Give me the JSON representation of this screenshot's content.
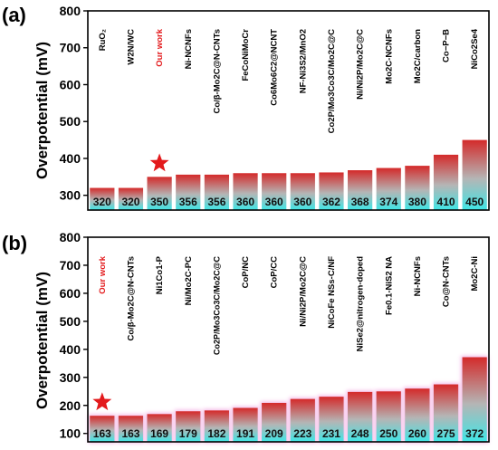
{
  "chart_data": [
    {
      "panel": "(a)",
      "type": "bar",
      "ylabel": "Overpotential (mV)",
      "ylim": [
        260,
        800
      ],
      "yticks": [
        300,
        400,
        500,
        600,
        700,
        800
      ],
      "highlight_index": 2,
      "star_on_index": 2,
      "categories": [
        "RuO₂",
        "W2N/WC",
        "Our work",
        "Ni-NCNFs",
        "Co/β-Mo2C@N-CNTs",
        "FeCoNiMoCr",
        "Co6Mo6C2@NCNT",
        "NF-Ni3S2/MnO2",
        "Co2P/Mo3Co3C/Mo2C@C",
        "Ni/Ni2P/Mo2C@C",
        "Mo2C-NCNFs",
        "Mo2C/carbon",
        "Co−P−B",
        "NiCo2Se4"
      ],
      "values": [
        320,
        320,
        350,
        356,
        356,
        360,
        360,
        360,
        362,
        368,
        374,
        380,
        410,
        450
      ],
      "value_labels": [
        "320",
        "320",
        "350",
        "356",
        "356",
        "360",
        "360",
        "360",
        "362",
        "368",
        "374",
        "380",
        "410",
        "450"
      ]
    },
    {
      "panel": "(b)",
      "type": "bar",
      "ylabel": "Overpotential (mV)",
      "ylim": [
        70,
        800
      ],
      "yticks": [
        100,
        200,
        300,
        400,
        500,
        600,
        700,
        800
      ],
      "highlight_index": 0,
      "star_on_index": 0,
      "categories": [
        "Our work",
        "Co/β-Mo2C@N-CNTs",
        "Ni1Co1-P",
        "Ni/Mo2C-PC",
        "Co2P/Mo3Co3C/Mo2C@C",
        "CoP/NC",
        "CoP/CC",
        "Ni/Ni2P/Mo2C@C",
        "NiCoFe NSs-C/NF",
        "NiSe2@nitrogen-doped",
        "Fe0.1-NiS2 NA",
        "Ni-NCNFs",
        "Co@N-CNTs",
        "Mo2C-Ni"
      ],
      "values": [
        163,
        163,
        169,
        179,
        182,
        191,
        209,
        223,
        231,
        248,
        250,
        260,
        275,
        372
      ],
      "value_labels": [
        "163",
        "163",
        "169",
        "179",
        "182",
        "191",
        "209",
        "223",
        "231",
        "248",
        "250",
        "260",
        "275",
        "372"
      ]
    }
  ],
  "colors": {
    "bar_top": "#d42a2a",
    "bar_mid": "#b0b0b0",
    "bar_bottom": "#3fe6e6",
    "star": "#e31a1c",
    "highlight_text": "#e31a1c",
    "glow": "#f4b6e6"
  }
}
